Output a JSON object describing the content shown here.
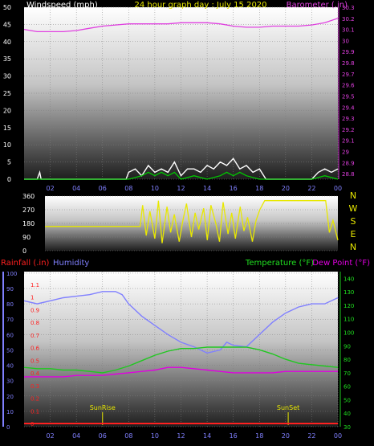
{
  "chart_data": [
    {
      "type": "line",
      "title": "24 hour graph day : July 15 2020",
      "ylabel_left": "Windspeed (mph)",
      "ylabel_right": "Barometer (.in)",
      "x_ticks": [
        "02",
        "04",
        "06",
        "08",
        "10",
        "12",
        "14",
        "16",
        "18",
        "20",
        "22",
        "00"
      ],
      "y_left_ticks": [
        "0",
        "5",
        "10",
        "15",
        "20",
        "25",
        "30",
        "35",
        "40",
        "45",
        "50"
      ],
      "y_left_lim": [
        0,
        50
      ],
      "y_right_ticks": [
        "28.8",
        "28.9",
        "29",
        "29.1",
        "29.2",
        "29.3",
        "29.4",
        "29.5",
        "29.6",
        "29.7",
        "29.8",
        "29.9",
        "30",
        "30.1",
        "30.2",
        "30.3"
      ],
      "y_right_lim": [
        28.75,
        30.3
      ],
      "series": [
        {
          "key": "barometer",
          "color": "#e040e0",
          "x": [
            0,
            1,
            2,
            3,
            4,
            5,
            6,
            7,
            8,
            9,
            10,
            11,
            12,
            13,
            14,
            15,
            16,
            17,
            18,
            19,
            20,
            21,
            22,
            23,
            24
          ],
          "y": [
            30.1,
            30.08,
            30.08,
            30.08,
            30.09,
            30.11,
            30.13,
            30.14,
            30.15,
            30.15,
            30.15,
            30.15,
            30.16,
            30.16,
            30.16,
            30.15,
            30.13,
            30.12,
            30.12,
            30.13,
            30.13,
            30.13,
            30.14,
            30.16,
            30.2
          ]
        },
        {
          "key": "windspeed",
          "color": "#ffffff",
          "x": [
            0,
            1,
            1.2,
            1.3,
            2,
            3,
            4,
            5,
            6,
            7,
            7.8,
            8,
            8.5,
            9,
            9.5,
            10,
            10.5,
            11,
            11.5,
            12,
            12.5,
            13,
            13.5,
            14,
            14.5,
            15,
            15.5,
            16,
            16.5,
            17,
            17.5,
            18,
            18.5,
            19,
            20,
            21,
            22,
            22.5,
            23,
            23.5,
            24
          ],
          "y": [
            0,
            0,
            2,
            0,
            0,
            0,
            0,
            0,
            0,
            0,
            0,
            2,
            3,
            1,
            4,
            2,
            3,
            2,
            5,
            1,
            3,
            3,
            2,
            4,
            3,
            5,
            4,
            6,
            3,
            4,
            2,
            3,
            0,
            0,
            0,
            0,
            0,
            2,
            3,
            2,
            3
          ]
        },
        {
          "key": "wind_gust",
          "color": "#00c800",
          "x": [
            0,
            8,
            9,
            9.5,
            10,
            10.5,
            11,
            11.5,
            12,
            13,
            14,
            15,
            15.5,
            16,
            16.5,
            17,
            18,
            19,
            22,
            23,
            24
          ],
          "y": [
            0,
            0,
            1,
            2,
            1,
            2,
            1,
            2,
            0,
            1,
            0,
            1,
            2,
            1,
            2,
            1,
            0,
            0,
            0,
            1,
            0
          ]
        }
      ]
    },
    {
      "type": "line",
      "y_left_ticks": [
        "0",
        "90",
        "180",
        "270",
        "360"
      ],
      "y_left_lim": [
        0,
        360
      ],
      "y_right_ticks": [
        "N",
        "W",
        "S",
        "E",
        "N"
      ],
      "series": [
        {
          "key": "wind_direction",
          "color": "#e8e800",
          "x": [
            0,
            7.8,
            8,
            8.3,
            8.6,
            9,
            9.3,
            9.6,
            10,
            10.3,
            10.6,
            11,
            11.3,
            11.6,
            12,
            12.3,
            12.6,
            13,
            13.3,
            13.6,
            14,
            14.3,
            14.6,
            15,
            15.3,
            15.6,
            16,
            16.3,
            16.6,
            17,
            17.3,
            17.6,
            18,
            18.3,
            18.6,
            19,
            20,
            22,
            23,
            23.3,
            23.6,
            24
          ],
          "y": [
            160,
            160,
            300,
            100,
            260,
            80,
            330,
            50,
            290,
            120,
            240,
            60,
            200,
            310,
            90,
            250,
            140,
            280,
            70,
            300,
            180,
            60,
            320,
            110,
            250,
            80,
            290,
            130,
            220,
            60,
            200,
            270,
            330,
            330,
            330,
            330,
            330,
            330,
            330,
            120,
            200,
            70
          ]
        }
      ]
    },
    {
      "type": "line",
      "ylabel_left_1": "Rainfall (.in)",
      "ylabel_left_2": "Humidity",
      "ylabel_right_1": "Temperature (°F)",
      "ylabel_right_2": "Dew Point (°F)",
      "x_ticks": [
        "02",
        "04",
        "06",
        "08",
        "10",
        "12",
        "14",
        "16",
        "18",
        "20",
        "22",
        "00"
      ],
      "humidity_ticks": [
        "0",
        "10",
        "20",
        "30",
        "40",
        "50",
        "60",
        "70",
        "80",
        "90",
        "100"
      ],
      "rain_ticks": [
        "0",
        "0.1",
        "0.2",
        "0.3",
        "0.4",
        "0.5",
        "0.6",
        "0.7",
        "0.8",
        "0.9",
        "1",
        "1.1"
      ],
      "temp_ticks": [
        "30",
        "40",
        "50",
        "60",
        "70",
        "80",
        "90",
        "100",
        "110",
        "120",
        "130",
        "140"
      ],
      "temp_lim": [
        30,
        145
      ],
      "humidity_lim": [
        0,
        101
      ],
      "annotations": [
        {
          "label": "SunRise",
          "x": 6.0
        },
        {
          "label": "SunSet",
          "x": 20.2
        }
      ],
      "series": [
        {
          "key": "humidity",
          "color": "#8080ff",
          "x": [
            0,
            1,
            2,
            3,
            4,
            5,
            6,
            7,
            7.5,
            8,
            9,
            10,
            11,
            12,
            13,
            14,
            15,
            15.5,
            16,
            17,
            18,
            19,
            20,
            21,
            22,
            23,
            24
          ],
          "y": [
            82,
            80,
            82,
            84,
            85,
            86,
            88,
            88,
            86,
            80,
            72,
            66,
            60,
            55,
            52,
            48,
            50,
            55,
            53,
            52,
            60,
            68,
            74,
            78,
            80,
            80,
            84
          ]
        },
        {
          "key": "temperature",
          "color": "#20c820",
          "x": [
            0,
            1,
            2,
            3,
            4,
            5,
            6,
            7,
            8,
            9,
            10,
            11,
            12,
            13,
            14,
            15,
            16,
            17,
            18,
            19,
            20,
            21,
            22,
            23,
            24
          ],
          "y": [
            74,
            73,
            73,
            72,
            72,
            71,
            70,
            72,
            75,
            79,
            83,
            86,
            88,
            88,
            89,
            89,
            89,
            89,
            87,
            84,
            80,
            77,
            76,
            75,
            74
          ]
        },
        {
          "key": "dew_point",
          "color": "#e000e0",
          "x": [
            0,
            1,
            2,
            3,
            4,
            5,
            6,
            7,
            8,
            9,
            10,
            11,
            12,
            13,
            14,
            15,
            16,
            17,
            18,
            19,
            20,
            21,
            22,
            23,
            24
          ],
          "y": [
            67,
            67,
            67,
            67,
            68,
            68,
            68,
            69,
            70,
            71,
            72,
            74,
            74,
            73,
            72,
            71,
            70,
            70,
            70,
            70,
            71,
            71,
            71,
            71,
            71
          ]
        },
        {
          "key": "rainfall",
          "color": "#ff2020",
          "x": [
            0,
            24
          ],
          "y": [
            0,
            0
          ]
        }
      ]
    }
  ]
}
